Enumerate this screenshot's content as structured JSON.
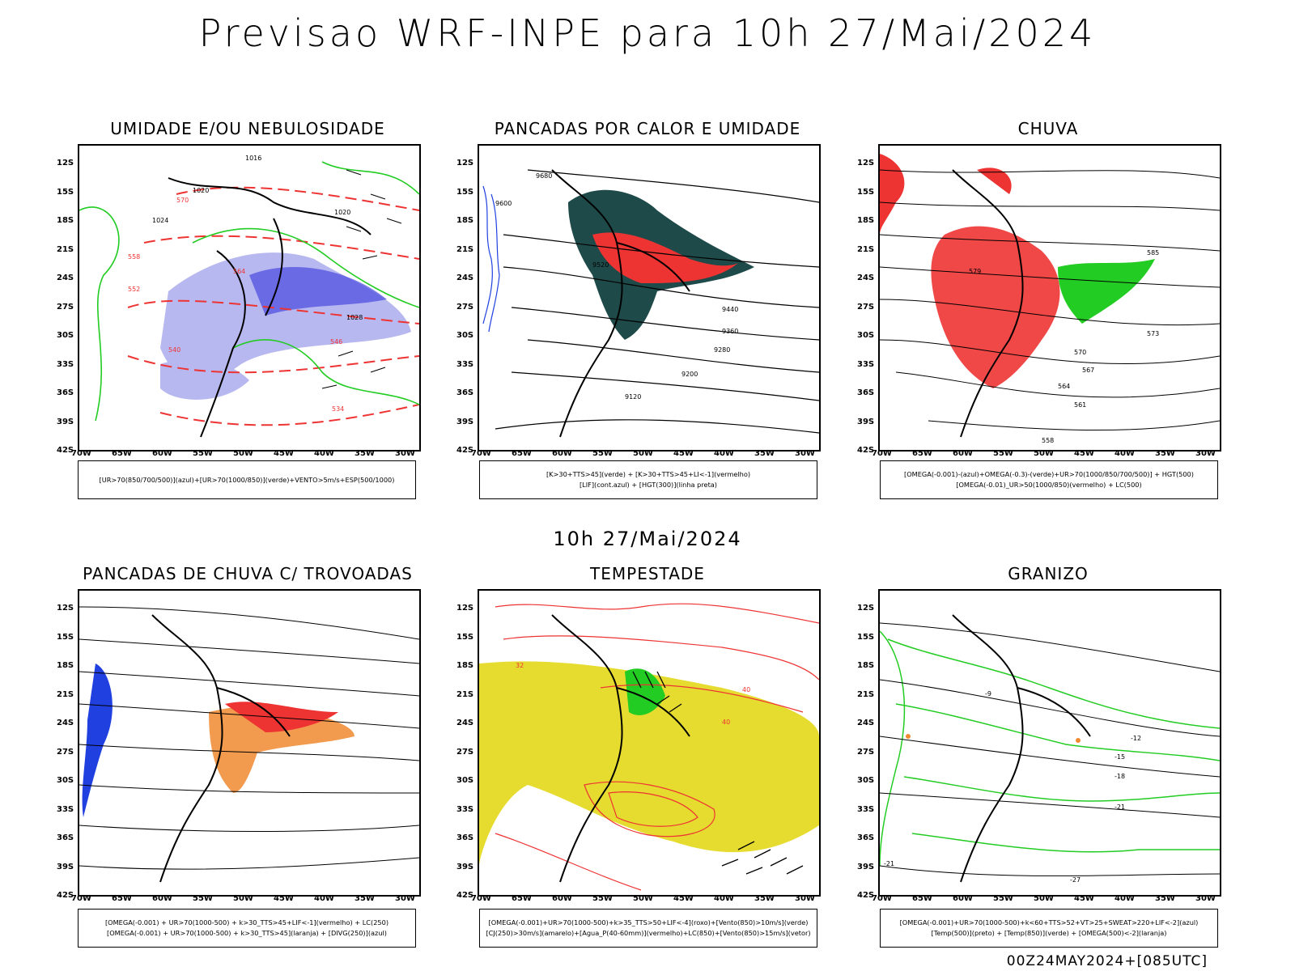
{
  "title": "Previsao WRF-INPE  para 10h 27/Mai/2024",
  "subtitle": "10h 27/Mai/2024",
  "footer": "00Z24MAY2024+[085UTC]",
  "lat_labels": [
    "12S",
    "15S",
    "18S",
    "21S",
    "24S",
    "27S",
    "30S",
    "33S",
    "36S",
    "39S",
    "42S"
  ],
  "lon_labels": [
    "70W",
    "65W",
    "60W",
    "55W",
    "50W",
    "45W",
    "40W",
    "35W",
    "30W"
  ],
  "panels": [
    {
      "title": "UMIDADE E/OU NEBULOSIDADE",
      "legend": [
        "[UR>70(850/700/500)](azul)+[UR>70(1000/850)](verde)+VENTO>5m/s+ESP(500/1000)"
      ],
      "labels": [
        "1016",
        "1020",
        "1024",
        "1028",
        "570",
        "564",
        "558",
        "552",
        "546",
        "540",
        "534",
        "1020"
      ]
    },
    {
      "title": "PANCADAS POR CALOR E UMIDADE",
      "legend": [
        "[K>30+TTS>45](verde) + [K>30+TTS>45+LI<-1](vermelho)",
        "[LIF](cont.azul) + [HGT(300)](linha preta)"
      ],
      "labels": [
        "9680",
        "9600",
        "9520",
        "9440",
        "9360",
        "9280",
        "9200",
        "9120"
      ]
    },
    {
      "title": "CHUVA",
      "legend": [
        "[OMEGA(-0.001)-(azul)+OMEGA(-0.3)-(verde)+UR>70(1000/850/700/500)] + HGT(500)",
        "[OMEGA(-0.01)_UR>50(1000/850)(vermelho) + LC(500)"
      ],
      "labels": [
        "585",
        "579",
        "573",
        "570",
        "567",
        "564",
        "561",
        "558"
      ]
    },
    {
      "title": "PANCADAS DE CHUVA C/ TROVOADAS",
      "legend": [
        "[OMEGA(-0.001) + UR>70(1000-500) + k>30_TTS>45+LIF<-1](vermelho) + LC(250)",
        "[OMEGA(-0.001) + UR>70(1000-500) + k>30_TTS>45](laranja) + [DIVG(250)](azul)"
      ],
      "labels": []
    },
    {
      "title": "TEMPESTADE",
      "legend": [
        "[OMEGA(-0.001)+UR>70(1000-500)+k>35_TTS>50+LIF<-4](roxo)+[Vento(850)>10m/s](verde)",
        "[CJ(250)>30m/s](amarelo)+[Agua_P(40-60mm)](vermelho)+LC(850)+[Vento(850)>15m/s](vetor)"
      ],
      "labels": [
        "40",
        "40",
        "32"
      ]
    },
    {
      "title": "GRANIZO",
      "legend": [
        "[OMEGA(-0.001)+UR>70(1000-500)+k<60+TTS>52+VT>25+SWEAT>220+LIF<-2](azul)",
        "[Temp(500)](preto) + [Temp(850)](verde) + [OMEGA(500)<-2](laranja)"
      ],
      "labels": [
        "-9",
        "-12",
        "-15",
        "-18",
        "-21",
        "-27",
        "-21"
      ]
    }
  ],
  "colors": {
    "humid_blue": "#b8b8f0",
    "humid_deep_blue": "#5050e0",
    "green": "#22cc22",
    "red": "#ee3333",
    "dark_teal": "#1f4a4a",
    "orange": "#f08a30",
    "yellow": "#e6dc30",
    "blue": "#2040e0"
  }
}
